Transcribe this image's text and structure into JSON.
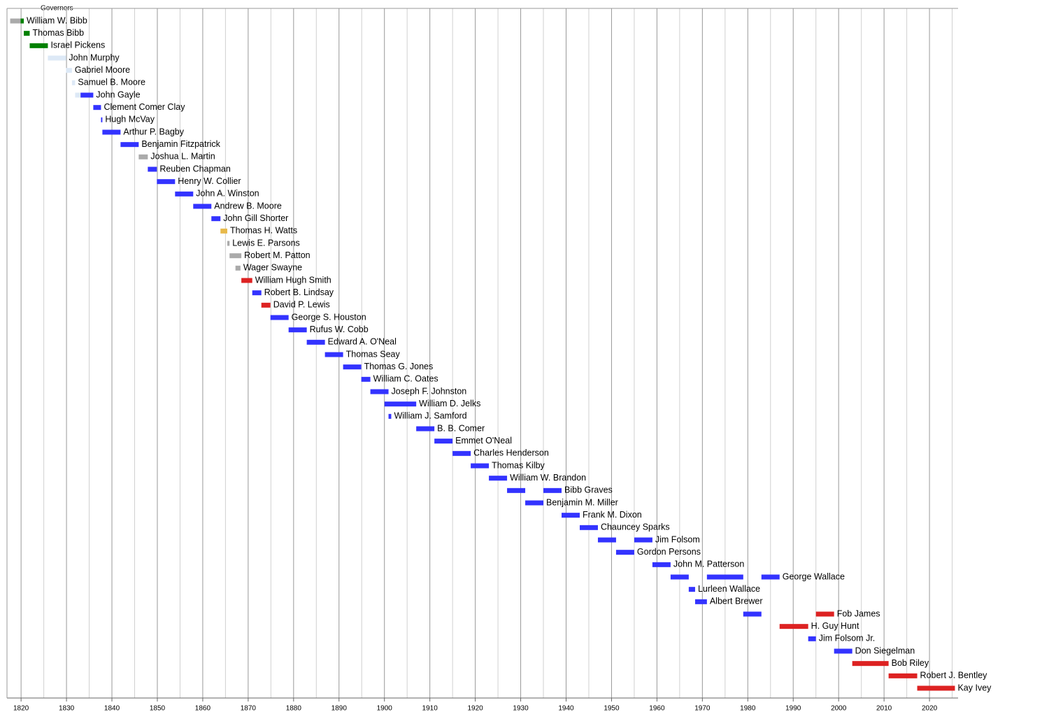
{
  "chart_data": {
    "type": "timeline",
    "title": "Governors",
    "xlim": [
      1816.9,
      2026.3
    ],
    "xticks": [
      1820,
      1830,
      1840,
      1850,
      1860,
      1870,
      1880,
      1890,
      1900,
      1910,
      1920,
      1930,
      1940,
      1950,
      1960,
      1970,
      1980,
      1990,
      2000,
      2010,
      2020
    ],
    "xminor": [
      1825,
      1835,
      1845,
      1855,
      1865,
      1875,
      1885,
      1895,
      1905,
      1915,
      1925,
      1935,
      1945,
      1955,
      1965,
      1975,
      1985,
      1995,
      2005,
      2015,
      2025
    ],
    "grid": true,
    "rows": [
      {
        "name": "William W. Bibb",
        "terms": [
          {
            "start": 1817.6,
            "end": 1819.9,
            "color": "#aaaaaa"
          },
          {
            "start": 1819.9,
            "end": 1820.6,
            "color": "#008000"
          }
        ]
      },
      {
        "name": "Thomas Bibb",
        "terms": [
          {
            "start": 1820.6,
            "end": 1821.9,
            "color": "#008000"
          }
        ]
      },
      {
        "name": "Israel Pickens",
        "terms": [
          {
            "start": 1821.9,
            "end": 1825.9,
            "color": "#008000"
          }
        ]
      },
      {
        "name": "John Murphy",
        "terms": [
          {
            "start": 1825.9,
            "end": 1829.9,
            "color": "#dde9f6"
          }
        ]
      },
      {
        "name": "Gabriel Moore",
        "terms": [
          {
            "start": 1829.9,
            "end": 1831.2,
            "color": "#dde9f6"
          }
        ]
      },
      {
        "name": "Samuel B. Moore",
        "terms": [
          {
            "start": 1831.2,
            "end": 1831.9,
            "color": "#dde9f6"
          }
        ]
      },
      {
        "name": "John Gayle",
        "terms": [
          {
            "start": 1831.9,
            "end": 1833.1,
            "color": "#dde9f6"
          },
          {
            "start": 1833.1,
            "end": 1835.9,
            "color": "#3333ff"
          }
        ]
      },
      {
        "name": "Clement Comer Clay",
        "terms": [
          {
            "start": 1835.9,
            "end": 1837.6,
            "color": "#3333ff"
          }
        ]
      },
      {
        "name": "Hugh McVay",
        "terms": [
          {
            "start": 1837.6,
            "end": 1837.9,
            "color": "#3333ff"
          }
        ]
      },
      {
        "name": "Arthur P. Bagby",
        "terms": [
          {
            "start": 1837.9,
            "end": 1841.9,
            "color": "#3333ff"
          }
        ]
      },
      {
        "name": "Benjamin Fitzpatrick",
        "terms": [
          {
            "start": 1841.9,
            "end": 1845.9,
            "color": "#3333ff"
          }
        ]
      },
      {
        "name": "Joshua L. Martin",
        "terms": [
          {
            "start": 1845.9,
            "end": 1847.9,
            "color": "#aaaaaa"
          }
        ]
      },
      {
        "name": "Reuben Chapman",
        "terms": [
          {
            "start": 1847.9,
            "end": 1849.9,
            "color": "#3333ff"
          }
        ]
      },
      {
        "name": "Henry W. Collier",
        "terms": [
          {
            "start": 1849.9,
            "end": 1853.9,
            "color": "#3333ff"
          }
        ]
      },
      {
        "name": "John A. Winston",
        "terms": [
          {
            "start": 1853.9,
            "end": 1857.9,
            "color": "#3333ff"
          }
        ]
      },
      {
        "name": "Andrew B. Moore",
        "terms": [
          {
            "start": 1857.9,
            "end": 1861.9,
            "color": "#3333ff"
          }
        ]
      },
      {
        "name": "John Gill Shorter",
        "terms": [
          {
            "start": 1861.9,
            "end": 1863.9,
            "color": "#3333ff"
          }
        ]
      },
      {
        "name": "Thomas H. Watts",
        "terms": [
          {
            "start": 1863.9,
            "end": 1865.4,
            "color": "#e8b94a"
          }
        ]
      },
      {
        "name": "Lewis E. Parsons",
        "terms": [
          {
            "start": 1865.4,
            "end": 1865.9,
            "color": "#aaaaaa"
          }
        ]
      },
      {
        "name": "Robert M. Patton",
        "terms": [
          {
            "start": 1865.9,
            "end": 1868.5,
            "color": "#aaaaaa"
          }
        ]
      },
      {
        "name": "Wager Swayne",
        "terms": [
          {
            "start": 1867.2,
            "end": 1868.3,
            "color": "#aaaaaa"
          }
        ]
      },
      {
        "name": "William Hugh Smith",
        "terms": [
          {
            "start": 1868.5,
            "end": 1870.9,
            "color": "#dd2222"
          }
        ]
      },
      {
        "name": "Robert B. Lindsay",
        "terms": [
          {
            "start": 1870.9,
            "end": 1872.9,
            "color": "#3333ff"
          }
        ]
      },
      {
        "name": "David P. Lewis",
        "terms": [
          {
            "start": 1872.9,
            "end": 1874.9,
            "color": "#dd2222"
          }
        ]
      },
      {
        "name": "George S. Houston",
        "terms": [
          {
            "start": 1874.9,
            "end": 1878.9,
            "color": "#3333ff"
          }
        ]
      },
      {
        "name": "Rufus W. Cobb",
        "terms": [
          {
            "start": 1878.9,
            "end": 1882.9,
            "color": "#3333ff"
          }
        ]
      },
      {
        "name": "Edward A. O'Neal",
        "terms": [
          {
            "start": 1882.9,
            "end": 1886.9,
            "color": "#3333ff"
          }
        ]
      },
      {
        "name": "Thomas Seay",
        "terms": [
          {
            "start": 1886.9,
            "end": 1890.9,
            "color": "#3333ff"
          }
        ]
      },
      {
        "name": "Thomas G. Jones",
        "terms": [
          {
            "start": 1890.9,
            "end": 1894.9,
            "color": "#3333ff"
          }
        ]
      },
      {
        "name": "William C. Oates",
        "terms": [
          {
            "start": 1894.9,
            "end": 1896.9,
            "color": "#3333ff"
          }
        ]
      },
      {
        "name": "Joseph F. Johnston",
        "terms": [
          {
            "start": 1896.9,
            "end": 1900.9,
            "color": "#3333ff"
          }
        ]
      },
      {
        "name": "William D. Jelks",
        "terms": [
          {
            "start": 1900.0,
            "end": 1907.0,
            "color": "#3333ff"
          }
        ]
      },
      {
        "name": "William J. Samford",
        "terms": [
          {
            "start": 1900.9,
            "end": 1901.5,
            "color": "#3333ff"
          }
        ]
      },
      {
        "name": "B. B. Comer",
        "terms": [
          {
            "start": 1907.0,
            "end": 1911.0,
            "color": "#3333ff"
          }
        ]
      },
      {
        "name": "Emmet O'Neal",
        "terms": [
          {
            "start": 1911.0,
            "end": 1915.0,
            "color": "#3333ff"
          }
        ]
      },
      {
        "name": "Charles Henderson",
        "terms": [
          {
            "start": 1915.0,
            "end": 1919.0,
            "color": "#3333ff"
          }
        ]
      },
      {
        "name": "Thomas Kilby",
        "terms": [
          {
            "start": 1919.0,
            "end": 1923.0,
            "color": "#3333ff"
          }
        ]
      },
      {
        "name": "William W. Brandon",
        "terms": [
          {
            "start": 1923.0,
            "end": 1927.0,
            "color": "#3333ff"
          }
        ]
      },
      {
        "name": "Bibb Graves",
        "terms": [
          {
            "start": 1927.0,
            "end": 1931.0,
            "color": "#3333ff"
          },
          {
            "start": 1935.0,
            "end": 1939.0,
            "color": "#3333ff"
          }
        ]
      },
      {
        "name": "Benjamin M. Miller",
        "terms": [
          {
            "start": 1931.0,
            "end": 1935.0,
            "color": "#3333ff"
          }
        ]
      },
      {
        "name": "Frank M. Dixon",
        "terms": [
          {
            "start": 1939.0,
            "end": 1943.0,
            "color": "#3333ff"
          }
        ]
      },
      {
        "name": "Chauncey Sparks",
        "terms": [
          {
            "start": 1943.0,
            "end": 1947.0,
            "color": "#3333ff"
          }
        ]
      },
      {
        "name": "Jim Folsom",
        "terms": [
          {
            "start": 1947.0,
            "end": 1951.0,
            "color": "#3333ff"
          },
          {
            "start": 1955.0,
            "end": 1959.0,
            "color": "#3333ff"
          }
        ]
      },
      {
        "name": "Gordon Persons",
        "terms": [
          {
            "start": 1951.0,
            "end": 1955.0,
            "color": "#3333ff"
          }
        ]
      },
      {
        "name": "John M. Patterson",
        "terms": [
          {
            "start": 1959.0,
            "end": 1963.0,
            "color": "#3333ff"
          }
        ]
      },
      {
        "name": "George Wallace",
        "terms": [
          {
            "start": 1963.0,
            "end": 1967.0,
            "color": "#3333ff"
          },
          {
            "start": 1971.0,
            "end": 1979.0,
            "color": "#3333ff"
          },
          {
            "start": 1983.0,
            "end": 1987.0,
            "color": "#3333ff"
          }
        ]
      },
      {
        "name": "Lurleen Wallace",
        "terms": [
          {
            "start": 1967.0,
            "end": 1968.4,
            "color": "#3333ff"
          }
        ]
      },
      {
        "name": "Albert Brewer",
        "terms": [
          {
            "start": 1968.4,
            "end": 1971.0,
            "color": "#3333ff"
          }
        ]
      },
      {
        "name": "Fob James",
        "terms": [
          {
            "start": 1979.0,
            "end": 1983.0,
            "color": "#3333ff"
          },
          {
            "start": 1995.0,
            "end": 1999.0,
            "color": "#dd2222"
          }
        ]
      },
      {
        "name": "H. Guy Hunt",
        "terms": [
          {
            "start": 1987.0,
            "end": 1993.3,
            "color": "#dd2222"
          }
        ]
      },
      {
        "name": "Jim Folsom Jr.",
        "terms": [
          {
            "start": 1993.3,
            "end": 1995.0,
            "color": "#3333ff"
          }
        ]
      },
      {
        "name": "Don Siegelman",
        "terms": [
          {
            "start": 1999.0,
            "end": 2003.0,
            "color": "#3333ff"
          }
        ]
      },
      {
        "name": "Bob Riley",
        "terms": [
          {
            "start": 2003.0,
            "end": 2011.0,
            "color": "#dd2222"
          }
        ]
      },
      {
        "name": "Robert J. Bentley",
        "terms": [
          {
            "start": 2011.0,
            "end": 2017.3,
            "color": "#dd2222"
          }
        ]
      },
      {
        "name": "Kay Ivey",
        "terms": [
          {
            "start": 2017.3,
            "end": 2025.6,
            "color": "#dd2222"
          }
        ]
      }
    ]
  }
}
